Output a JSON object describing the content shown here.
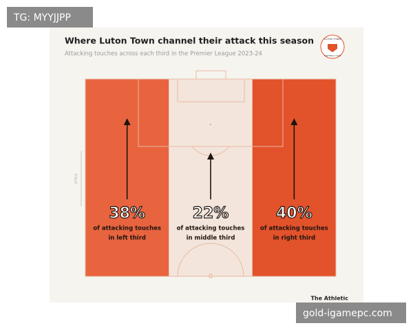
{
  "watermark": "TG: MYYJJPP",
  "chart_data": {
    "type": "pitch-thirds",
    "title": "Where Luton Town channel their attack this season",
    "subtitle": "Attacking touches across each third in the Premier League 2023-24",
    "logo": [
      "LUTON TOWN",
      "FOOTBALL CLUB"
    ],
    "direction_label": "ATTACK",
    "values": [
      38,
      22,
      40
    ],
    "value_labels": [
      "38%",
      "22%",
      "40%"
    ],
    "descriptions": [
      [
        "of attacking touches",
        "in left third"
      ],
      [
        "of attacking touches",
        "in middle third"
      ],
      [
        "of attacking touches",
        "in right third"
      ]
    ],
    "colors": [
      "#e8643f",
      "#f3e5db",
      "#e2522b"
    ],
    "source": "The Athletic"
  },
  "site": "gold-igamepc.com"
}
